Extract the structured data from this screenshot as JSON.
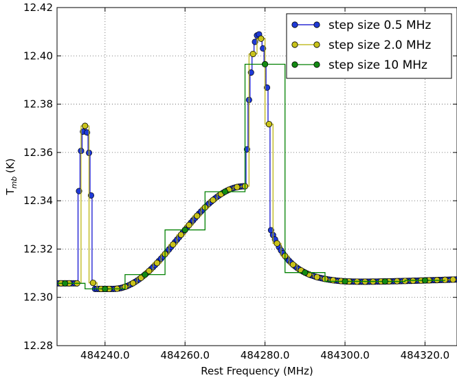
{
  "chart_data": {
    "type": "line",
    "title": "",
    "xlabel": "Rest Frequency (MHz)",
    "ylabel": "T",
    "ylabel_sub": "mb",
    "ylabel_unit": " (K)",
    "xlim": [
      484228.0,
      484328.0
    ],
    "ylim": [
      12.28,
      12.42
    ],
    "xticks": [
      484240.0,
      484260.0,
      484280.0,
      484300.0,
      484320.0
    ],
    "xtick_labels": [
      "484240.0",
      "484260.0",
      "484280.0",
      "484300.0",
      "484320.0"
    ],
    "yticks": [
      12.28,
      12.3,
      12.32,
      12.34,
      12.36,
      12.38,
      12.4,
      12.42
    ],
    "ytick_labels": [
      "12.28",
      "12.30",
      "12.32",
      "12.34",
      "12.36",
      "12.38",
      "12.40",
      "12.42"
    ],
    "grid": true,
    "legend_position": "top-right",
    "series": [
      {
        "name": "step size 0.5 MHz",
        "color": "#0000cc",
        "marker_color": "#1f3ad6",
        "step": 0.5,
        "line_width": 1.2,
        "marker_size": 4.2
      },
      {
        "name": "step size 2.0 MHz",
        "color": "#b8b000",
        "marker_color": "#c8c21a",
        "step": 2.0,
        "line_width": 1.2,
        "marker_size": 4.2
      },
      {
        "name": "step size 10 MHz",
        "color": "#008000",
        "marker_color": "#138a13",
        "step": 10.0,
        "line_width": 1.3,
        "marker_size": 4.2
      }
    ]
  }
}
